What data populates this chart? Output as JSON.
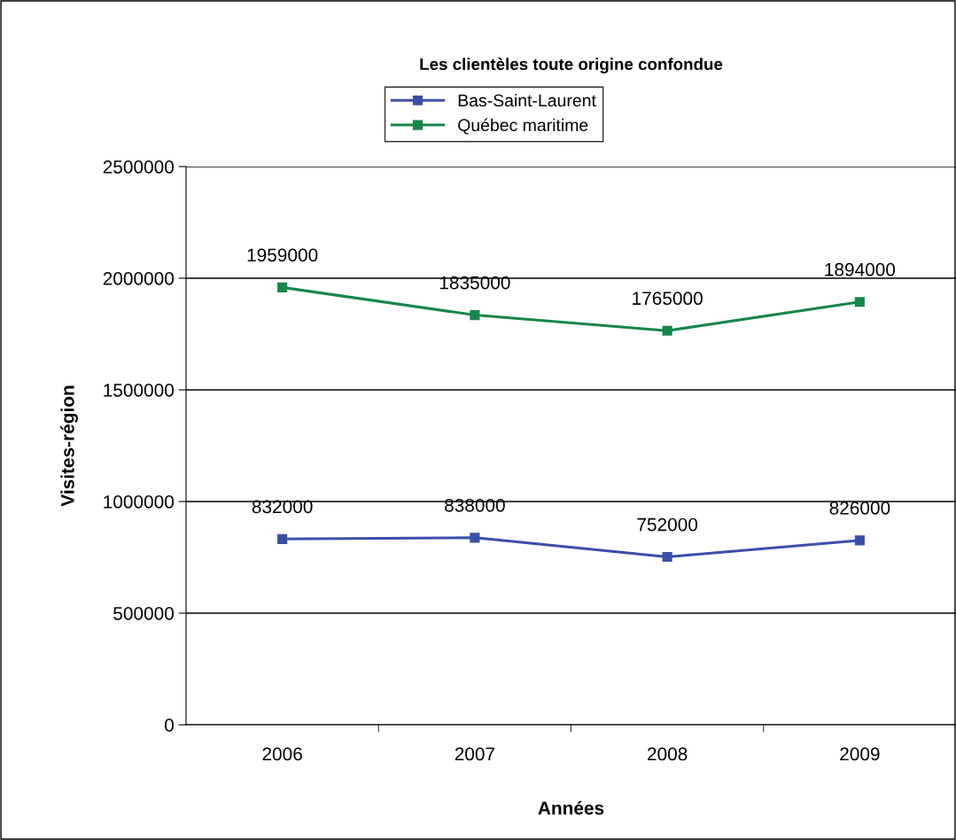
{
  "chart_data": {
    "type": "line",
    "title": "Les clientèles toute origine confondue",
    "xlabel": "Années",
    "ylabel": "Visites-région",
    "categories": [
      "2006",
      "2007",
      "2008",
      "2009"
    ],
    "series": [
      {
        "name": "Bas-Saint-Laurent",
        "color": "#3a4fa8",
        "values": [
          832000,
          838000,
          752000,
          826000
        ]
      },
      {
        "name": "Québec maritime",
        "color": "#16864a",
        "values": [
          1959000,
          1835000,
          1765000,
          1894000
        ]
      }
    ],
    "ylim": [
      0,
      2500000
    ],
    "yticks": [
      0,
      500000,
      1000000,
      1500000,
      2000000,
      2500000
    ],
    "grid": "y",
    "legend": "top",
    "marker": "square",
    "line_style": "solid",
    "data_labels": true
  }
}
